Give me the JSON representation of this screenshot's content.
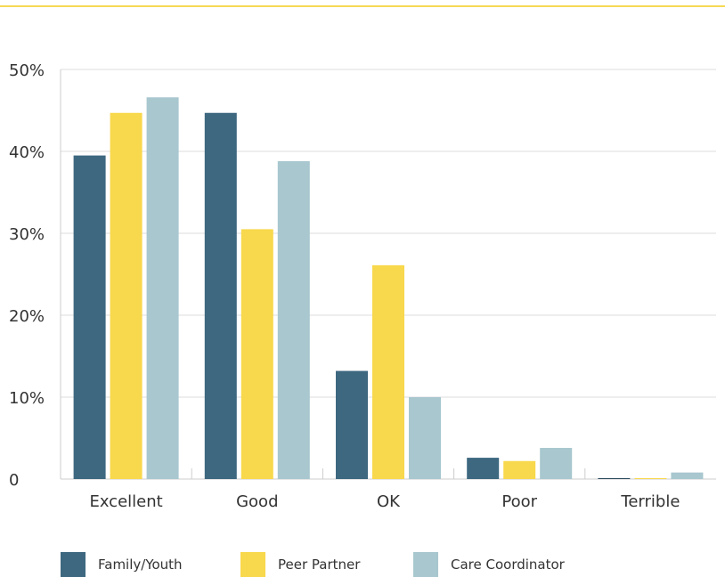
{
  "colors": {
    "family_youth": "#3d6880",
    "peer_partner": "#f8d84c",
    "care_coordinator": "#a8c7cf",
    "gridline": "#dddddd",
    "axis": "#cccccc",
    "top_rule": "#f5d955"
  },
  "chart_data": {
    "type": "bar",
    "title": "",
    "xlabel": "",
    "ylabel": "",
    "ylim": [
      0,
      50
    ],
    "y_ticks": [
      {
        "value": 0,
        "label": "0"
      },
      {
        "value": 10,
        "label": "10%"
      },
      {
        "value": 20,
        "label": "20%"
      },
      {
        "value": 30,
        "label": "30%"
      },
      {
        "value": 40,
        "label": "40%"
      },
      {
        "value": 50,
        "label": "50%"
      }
    ],
    "grid": true,
    "legend_position": "bottom",
    "categories": [
      "Excellent",
      "Good",
      "OK",
      "Poor",
      "Terrible"
    ],
    "series": [
      {
        "name": "Family/Youth",
        "values": [
          39.5,
          44.7,
          13.2,
          2.6,
          0.1
        ]
      },
      {
        "name": "Peer Partner",
        "values": [
          44.7,
          30.5,
          26.1,
          2.2,
          0.1
        ]
      },
      {
        "name": "Care Coordinator",
        "values": [
          46.6,
          38.8,
          10.0,
          3.8,
          0.8
        ]
      }
    ]
  }
}
